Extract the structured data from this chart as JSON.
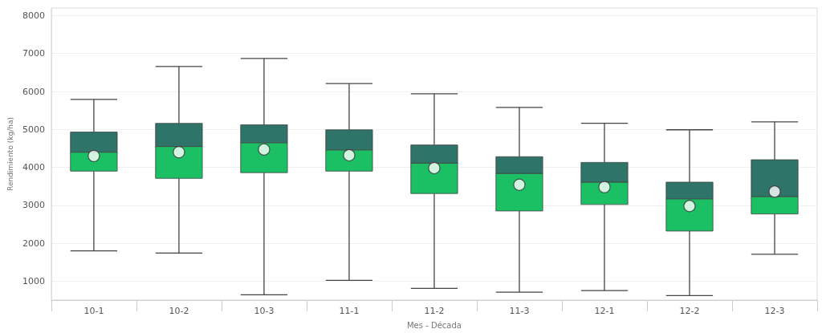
{
  "chart_data": {
    "type": "box",
    "xlabel": "Mes - Década",
    "ylabel": "Rendimiento (kg/ha)",
    "categories": [
      "10-1",
      "10-2",
      "10-3",
      "11-1",
      "11-2",
      "11-3",
      "12-1",
      "12-2",
      "12-3"
    ],
    "series": [
      {
        "color": "#2e7468",
        "colors": [
          "#1bc065",
          "#1bc065",
          "#1bc065",
          "#1bc065",
          "#1bc065",
          "#1bc065",
          "#1bc065",
          "#1bc065",
          "#1bc065"
        ],
        "boxes": [
          {
            "low": 1800,
            "q1": 3900,
            "median": 4400,
            "q3": 4930,
            "high": 5790,
            "mean": 4300
          },
          {
            "low": 1740,
            "q1": 3710,
            "median": 4550,
            "q3": 5160,
            "high": 6660,
            "mean": 4400
          },
          {
            "low": 640,
            "q1": 3860,
            "median": 4650,
            "q3": 5120,
            "high": 6870,
            "mean": 4470
          },
          {
            "low": 1020,
            "q1": 3900,
            "median": 4460,
            "q3": 4990,
            "high": 6210,
            "mean": 4320
          },
          {
            "low": 810,
            "q1": 3310,
            "median": 4110,
            "q3": 4590,
            "high": 5940,
            "mean": 3980
          },
          {
            "low": 710,
            "q1": 2850,
            "median": 3840,
            "q3": 4280,
            "high": 5580,
            "mean": 3540
          },
          {
            "low": 750,
            "q1": 3020,
            "median": 3610,
            "q3": 4130,
            "high": 5160,
            "mean": 3480
          },
          {
            "low": 620,
            "q1": 2320,
            "median": 3170,
            "q3": 3610,
            "high": 4990,
            "mean": 2980
          },
          {
            "low": 1710,
            "q1": 2770,
            "median": 3230,
            "q3": 4200,
            "high": 5200,
            "mean": 3360
          }
        ]
      }
    ],
    "ylim": [
      500,
      8200
    ],
    "yticks": [
      1000,
      2000,
      3000,
      4000,
      5000,
      6000,
      7000,
      8000
    ],
    "grid": "y",
    "marker": "circle"
  }
}
